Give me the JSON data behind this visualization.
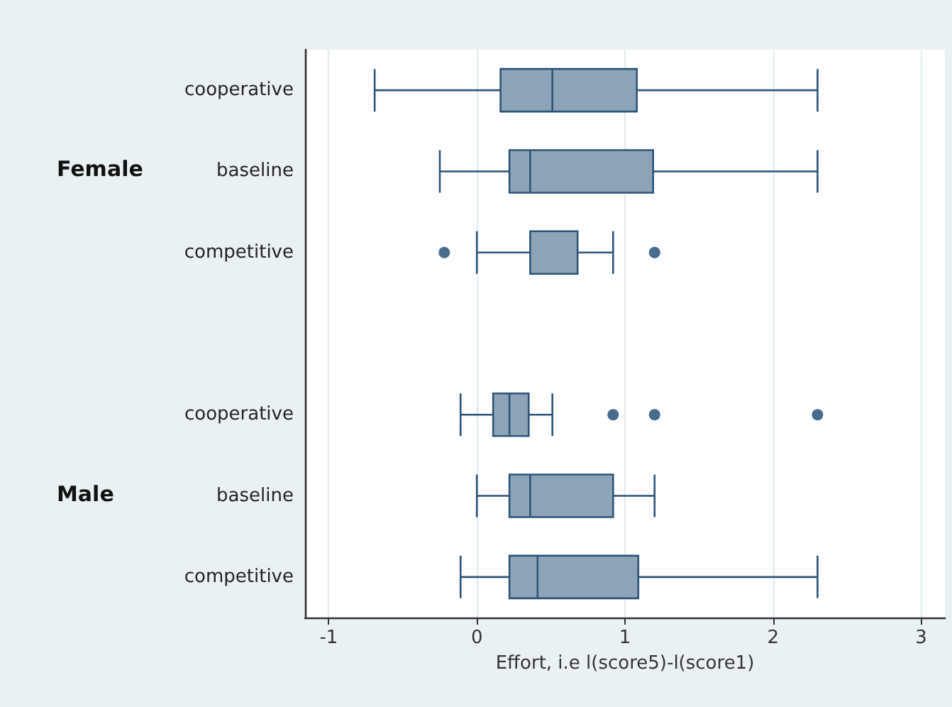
{
  "chart_data": {
    "type": "box",
    "orientation": "horizontal",
    "xlabel": "Effort, i.e l(score5)-l(score1)",
    "categories": [
      "cooperative",
      "baseline",
      "competitive",
      null,
      "cooperative",
      "baseline",
      "competitive"
    ],
    "color": "#8da4b8",
    "boxes": [
      {
        "low": -0.69,
        "q1": 0.16,
        "median": 0.51,
        "q3": 1.08,
        "high": 2.3
      },
      {
        "low": -0.25,
        "q1": 0.22,
        "median": 0.36,
        "q3": 1.19,
        "high": 2.3
      },
      {
        "low": 0,
        "q1": 0.36,
        "median": 0.36,
        "q3": 0.68,
        "high": 0.92,
        "outliers": [
          -0.22,
          1.2
        ]
      },
      null,
      {
        "low": -0.11,
        "q1": 0.11,
        "median": 0.22,
        "q3": 0.35,
        "high": 0.51,
        "outliers": [
          0.92,
          1.2,
          2.3
        ]
      },
      {
        "low": 0,
        "q1": 0.22,
        "median": 0.36,
        "q3": 0.92,
        "high": 1.2
      },
      {
        "low": -0.11,
        "q1": 0.22,
        "median": 0.41,
        "q3": 1.09,
        "high": 2.3
      }
    ],
    "annotations": [
      "Female",
      "Male"
    ],
    "xlim": [
      -1.16,
      3.16
    ],
    "xticks": [
      -1,
      0,
      1,
      2,
      3
    ],
    "grid": "x"
  }
}
